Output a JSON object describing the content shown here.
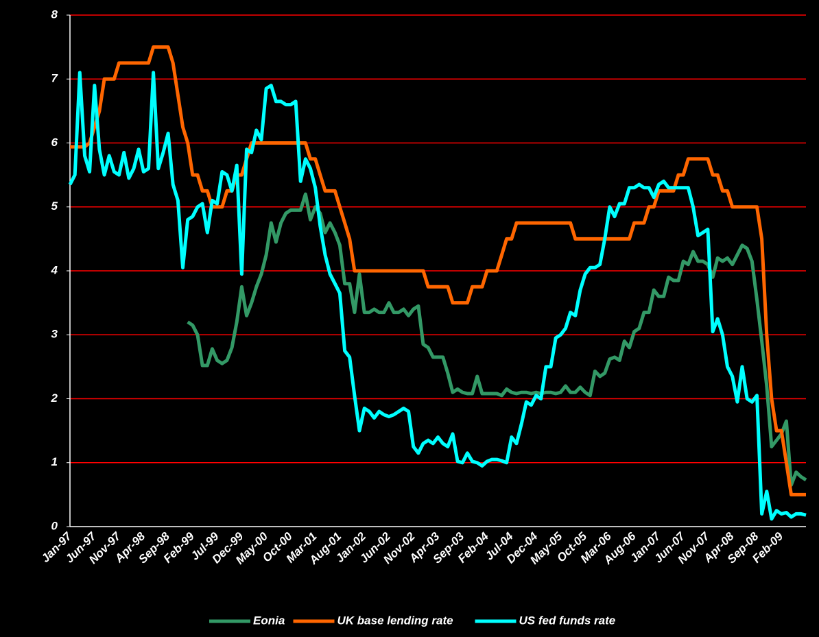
{
  "chart_data": {
    "type": "line",
    "categories": [
      "Jan-97",
      null,
      null,
      null,
      null,
      "Jun-97",
      null,
      null,
      null,
      null,
      "Nov-97",
      null,
      null,
      null,
      null,
      "Apr-98",
      null,
      null,
      null,
      null,
      "Sep-98",
      null,
      null,
      null,
      null,
      "Feb-99",
      null,
      null,
      null,
      null,
      "Jul-99",
      null,
      null,
      null,
      null,
      "Dec-99",
      null,
      null,
      null,
      null,
      "May-00",
      null,
      null,
      null,
      null,
      "Oct-00",
      null,
      null,
      null,
      null,
      "Mar-01",
      null,
      null,
      null,
      null,
      "Aug-01",
      null,
      null,
      null,
      null,
      "Jan-02",
      null,
      null,
      null,
      null,
      "Jun-02",
      null,
      null,
      null,
      null,
      "Nov-02",
      null,
      null,
      null,
      null,
      "Apr-03",
      null,
      null,
      null,
      null,
      "Sep-03",
      null,
      null,
      null,
      null,
      "Feb-04",
      null,
      null,
      null,
      null,
      "Jul-04",
      null,
      null,
      null,
      null,
      "Dec-04",
      null,
      null,
      null,
      null,
      "May-05",
      null,
      null,
      null,
      null,
      "Oct-05",
      null,
      null,
      null,
      null,
      "Mar-06",
      null,
      null,
      null,
      null,
      "Aug-06",
      null,
      null,
      null,
      null,
      "Jan-07",
      null,
      null,
      null,
      null,
      "Jun-07",
      null,
      null,
      null,
      null,
      "Nov-07",
      null,
      null,
      null,
      null,
      "Apr-08",
      null,
      null,
      null,
      null,
      "Sep-08",
      null,
      null,
      null,
      null,
      "Feb-09",
      null,
      null,
      null,
      null,
      null
    ],
    "series": [
      {
        "name": "Eonia",
        "color": "#339966",
        "values": [
          null,
          null,
          null,
          null,
          null,
          null,
          null,
          null,
          null,
          null,
          null,
          null,
          null,
          null,
          null,
          null,
          null,
          null,
          null,
          null,
          null,
          null,
          null,
          null,
          3.2,
          3.15,
          3.0,
          2.52,
          2.52,
          2.78,
          2.6,
          2.55,
          2.6,
          2.8,
          3.2,
          3.75,
          3.3,
          3.5,
          3.75,
          3.95,
          4.25,
          4.75,
          4.45,
          4.75,
          4.9,
          4.95,
          4.95,
          4.95,
          5.2,
          4.8,
          5.0,
          4.9,
          4.6,
          4.75,
          4.6,
          4.4,
          3.8,
          3.8,
          3.35,
          3.95,
          3.35,
          3.35,
          3.4,
          3.35,
          3.35,
          3.5,
          3.35,
          3.35,
          3.4,
          3.3,
          3.4,
          3.45,
          2.85,
          2.8,
          2.65,
          2.65,
          2.65,
          2.4,
          2.1,
          2.15,
          2.1,
          2.08,
          2.08,
          2.35,
          2.08,
          2.08,
          2.08,
          2.08,
          2.05,
          2.15,
          2.1,
          2.08,
          2.1,
          2.1,
          2.08,
          2.1,
          2.08,
          2.1,
          2.1,
          2.08,
          2.1,
          2.2,
          2.1,
          2.1,
          2.18,
          2.1,
          2.05,
          2.43,
          2.35,
          2.4,
          2.62,
          2.65,
          2.6,
          2.9,
          2.8,
          3.05,
          3.1,
          3.35,
          3.35,
          3.7,
          3.6,
          3.6,
          3.9,
          3.85,
          3.85,
          4.15,
          4.1,
          4.3,
          4.15,
          4.15,
          4.1,
          3.9,
          4.2,
          4.15,
          4.2,
          4.1,
          4.25,
          4.4,
          4.35,
          4.15,
          3.55,
          2.9,
          2.2,
          1.25,
          1.35,
          1.45,
          1.65,
          0.65,
          0.85,
          0.78,
          0.73
        ]
      },
      {
        "name": "UK base lending rate",
        "color": "#ff6600",
        "values": [
          5.94,
          5.94,
          5.94,
          5.94,
          6.0,
          6.25,
          6.5,
          7.0,
          7.0,
          7.0,
          7.25,
          7.25,
          7.25,
          7.25,
          7.25,
          7.25,
          7.25,
          7.5,
          7.5,
          7.5,
          7.5,
          7.25,
          6.75,
          6.25,
          6.0,
          5.5,
          5.5,
          5.25,
          5.25,
          5.0,
          5.0,
          5.0,
          5.25,
          5.25,
          5.5,
          5.5,
          5.75,
          6.0,
          6.0,
          6.0,
          6.0,
          6.0,
          6.0,
          6.0,
          6.0,
          6.0,
          6.0,
          6.0,
          6.0,
          5.75,
          5.75,
          5.5,
          5.25,
          5.25,
          5.25,
          5.0,
          4.75,
          4.5,
          4.0,
          4.0,
          4.0,
          4.0,
          4.0,
          4.0,
          4.0,
          4.0,
          4.0,
          4.0,
          4.0,
          4.0,
          4.0,
          4.0,
          4.0,
          3.75,
          3.75,
          3.75,
          3.75,
          3.75,
          3.5,
          3.5,
          3.5,
          3.5,
          3.75,
          3.75,
          3.75,
          4.0,
          4.0,
          4.0,
          4.25,
          4.5,
          4.5,
          4.75,
          4.75,
          4.75,
          4.75,
          4.75,
          4.75,
          4.75,
          4.75,
          4.75,
          4.75,
          4.75,
          4.75,
          4.5,
          4.5,
          4.5,
          4.5,
          4.5,
          4.5,
          4.5,
          4.5,
          4.5,
          4.5,
          4.5,
          4.5,
          4.75,
          4.75,
          4.75,
          5.0,
          5.0,
          5.25,
          5.25,
          5.25,
          5.25,
          5.5,
          5.5,
          5.75,
          5.75,
          5.75,
          5.75,
          5.75,
          5.5,
          5.5,
          5.25,
          5.25,
          5.0,
          5.0,
          5.0,
          5.0,
          5.0,
          5.0,
          4.5,
          3.0,
          2.0,
          1.5,
          1.5,
          1.0,
          0.5,
          0.5,
          0.5,
          0.5
        ]
      },
      {
        "name": "US fed funds rate",
        "color": "#00ffff",
        "values": [
          5.35,
          5.5,
          7.1,
          5.8,
          5.55,
          6.9,
          5.9,
          5.5,
          5.8,
          5.55,
          5.5,
          5.85,
          5.45,
          5.6,
          5.9,
          5.55,
          5.6,
          7.1,
          5.6,
          5.85,
          6.15,
          5.35,
          5.1,
          4.05,
          4.8,
          4.85,
          5.0,
          5.05,
          4.6,
          5.1,
          5.05,
          5.55,
          5.5,
          5.25,
          5.65,
          3.95,
          5.9,
          5.85,
          6.2,
          6.05,
          6.85,
          6.9,
          6.65,
          6.65,
          6.6,
          6.6,
          6.65,
          5.4,
          5.75,
          5.6,
          5.3,
          4.7,
          4.25,
          3.95,
          3.8,
          3.65,
          2.75,
          2.65,
          2.05,
          1.5,
          1.85,
          1.8,
          1.7,
          1.8,
          1.75,
          1.72,
          1.75,
          1.8,
          1.85,
          1.8,
          1.25,
          1.15,
          1.3,
          1.35,
          1.3,
          1.4,
          1.3,
          1.25,
          1.45,
          1.02,
          1.0,
          1.15,
          1.02,
          1.0,
          0.95,
          1.02,
          1.05,
          1.05,
          1.03,
          1.0,
          1.4,
          1.3,
          1.6,
          1.95,
          1.9,
          2.05,
          2.0,
          2.5,
          2.5,
          2.95,
          3.0,
          3.1,
          3.35,
          3.3,
          3.7,
          3.95,
          4.05,
          4.05,
          4.1,
          4.5,
          5.0,
          4.85,
          5.05,
          5.05,
          5.3,
          5.3,
          5.35,
          5.3,
          5.3,
          5.15,
          5.35,
          5.4,
          5.3,
          5.3,
          5.3,
          5.3,
          5.3,
          5.0,
          4.55,
          4.6,
          4.65,
          3.05,
          3.25,
          3.0,
          2.5,
          2.35,
          1.95,
          2.5,
          2.0,
          1.95,
          2.05,
          0.2,
          0.55,
          0.12,
          0.25,
          0.2,
          0.22,
          0.15,
          0.2,
          0.2,
          0.18
        ]
      }
    ],
    "ylim": [
      0,
      8
    ],
    "yticks": [
      0,
      1,
      2,
      3,
      4,
      5,
      6,
      7,
      8
    ],
    "grid": true,
    "grid_color": "#ff0000",
    "legend": "bottom"
  }
}
